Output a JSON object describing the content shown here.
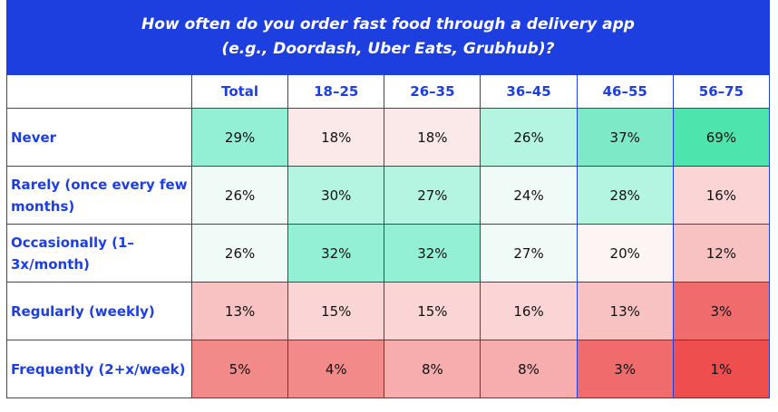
{
  "title_line1": "How often do you order fast food through a delivery app",
  "title_line2": "(e.g., Doordash, Uber Eats, Grubhub)?",
  "chart_data": {
    "type": "table",
    "columns": [
      "Total",
      "18–25",
      "26–35",
      "36–45",
      "46–55",
      "56–75"
    ],
    "rows": [
      {
        "label": "Never",
        "values": [
          "29%",
          "18%",
          "18%",
          "26%",
          "37%",
          "69%"
        ],
        "colors": [
          "#93f0d4",
          "#fbe8e8",
          "#fbe8e8",
          "#b4f5e2",
          "#7ee9c6",
          "#4de5ad"
        ]
      },
      {
        "label": "Rarely (once every few months)",
        "values": [
          "26%",
          "30%",
          "27%",
          "24%",
          "28%",
          "16%"
        ],
        "colors": [
          "#f0faf6",
          "#b4f5e2",
          "#b4f5e2",
          "#f0faf6",
          "#b4f5e2",
          "#fbd5d5"
        ]
      },
      {
        "label": "Occasionally (1–3x/month)",
        "values": [
          "26%",
          "32%",
          "32%",
          "27%",
          "20%",
          "12%"
        ],
        "colors": [
          "#f0faf6",
          "#93f0d4",
          "#93f0d4",
          "#f0faf6",
          "#fdf4f4",
          "#f8c2c2"
        ]
      },
      {
        "label": "Regularly (weekly)",
        "values": [
          "13%",
          "15%",
          "15%",
          "16%",
          "13%",
          "3%"
        ],
        "colors": [
          "#f8c2c2",
          "#fbd5d5",
          "#fbd5d5",
          "#fbd5d5",
          "#f8c2c2",
          "#f06b6b"
        ]
      },
      {
        "label": "Frequently (2+x/week)",
        "values": [
          "5%",
          "4%",
          "8%",
          "8%",
          "3%",
          "1%"
        ],
        "colors": [
          "#f38a8a",
          "#f38a8a",
          "#f7adad",
          "#f7adad",
          "#f06b6b",
          "#ef4e4e"
        ]
      }
    ]
  }
}
